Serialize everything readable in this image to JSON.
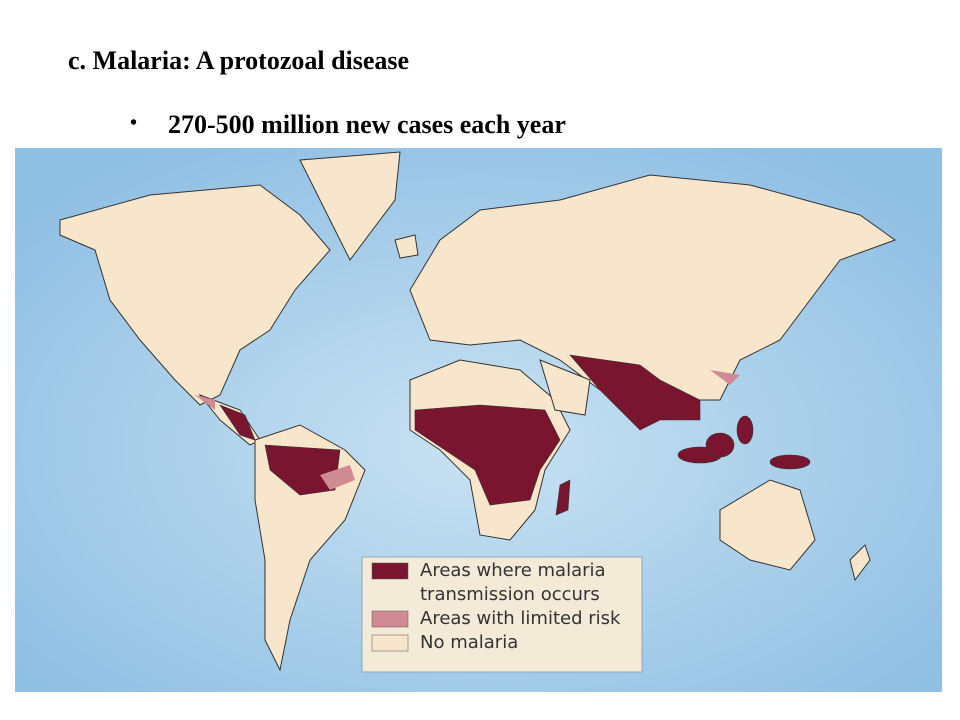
{
  "title": "c. Malaria: A protozoal disease",
  "bullets": [
    "270-500 million new cases each year"
  ],
  "legend": {
    "items": [
      {
        "lines": [
          "Areas where malaria",
          "transmission occurs"
        ],
        "color": "#7a1530"
      },
      {
        "lines": [
          "Areas with limited risk"
        ],
        "color": "#d08a94"
      },
      {
        "lines": [
          "No malaria"
        ],
        "color": "#f7e6cc"
      }
    ]
  }
}
